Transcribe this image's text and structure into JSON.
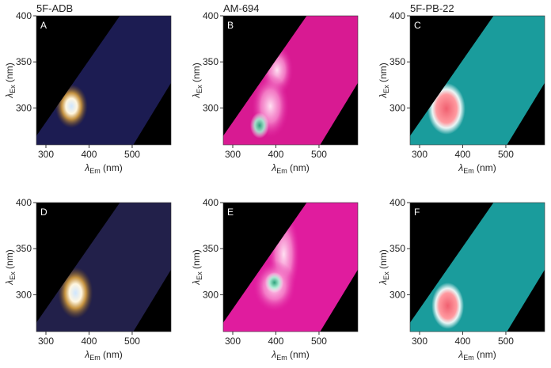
{
  "chart_data": [
    {
      "type": "heatmap",
      "panel": "A",
      "title": "5F-ADB",
      "xlabel": {
        "symbol": "λ",
        "subscript": "Em",
        "unit": "(nm)"
      },
      "ylabel": {
        "symbol": "λ",
        "subscript": "Ex",
        "unit": "(nm)"
      },
      "xlim": [
        278,
        590
      ],
      "ylim": [
        260,
        400
      ],
      "xticks": [
        300,
        400,
        500
      ],
      "yticks": [
        300,
        350,
        400
      ],
      "color": "#1c1c52"
    },
    {
      "type": "heatmap",
      "panel": "B",
      "title": "AM-694",
      "xlabel": {
        "symbol": "λ",
        "subscript": "Em",
        "unit": "(nm)"
      },
      "ylabel": {
        "symbol": "λ",
        "subscript": "Ex",
        "unit": "(nm)"
      },
      "xlim": [
        278,
        590
      ],
      "ylim": [
        260,
        400
      ],
      "xticks": [
        300,
        400,
        500
      ],
      "yticks": [
        300,
        350,
        400
      ],
      "color": "#d81a92"
    },
    {
      "type": "heatmap",
      "panel": "C",
      "title": "5F-PB-22",
      "xlabel": {
        "symbol": "λ",
        "subscript": "Em",
        "unit": "(nm)"
      },
      "ylabel": {
        "symbol": "λ",
        "subscript": "Ex",
        "unit": "(nm)"
      },
      "xlim": [
        278,
        590
      ],
      "ylim": [
        260,
        400
      ],
      "xticks": [
        300,
        400,
        500
      ],
      "yticks": [
        300,
        350,
        400
      ],
      "color": "#1a9c9c"
    },
    {
      "type": "heatmap",
      "panel": "D",
      "xlabel": {
        "symbol": "λ",
        "subscript": "Em",
        "unit": "(nm)"
      },
      "ylabel": {
        "symbol": "λ",
        "subscript": "Ex",
        "unit": "(nm)"
      },
      "xlim": [
        278,
        590
      ],
      "ylim": [
        260,
        400
      ],
      "xticks": [
        300,
        400,
        500
      ],
      "yticks": [
        300,
        350,
        400
      ],
      "color": "#22204a"
    },
    {
      "type": "heatmap",
      "panel": "E",
      "xlabel": {
        "symbol": "λ",
        "subscript": "Em",
        "unit": "(nm)"
      },
      "ylabel": {
        "symbol": "λ",
        "subscript": "Ex",
        "unit": "(nm)"
      },
      "xlim": [
        278,
        590
      ],
      "ylim": [
        260,
        400
      ],
      "xticks": [
        300,
        400,
        500
      ],
      "yticks": [
        300,
        350,
        400
      ],
      "color": "#e01c9e"
    },
    {
      "type": "heatmap",
      "panel": "F",
      "xlabel": {
        "symbol": "λ",
        "subscript": "Em",
        "unit": "(nm)"
      },
      "ylabel": {
        "symbol": "λ",
        "subscript": "Ex",
        "unit": "(nm)"
      },
      "xlim": [
        278,
        590
      ],
      "ylim": [
        260,
        400
      ],
      "xticks": [
        300,
        400,
        500
      ],
      "yticks": [
        300,
        350,
        400
      ],
      "color": "#1a9c9c"
    }
  ]
}
